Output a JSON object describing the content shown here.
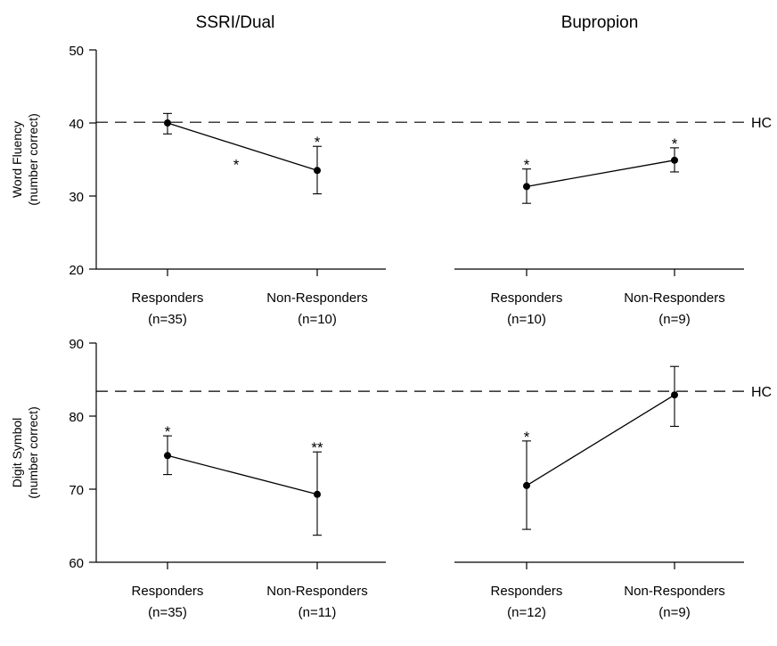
{
  "chart_data": {
    "type": "line",
    "column_titles": [
      "SSRI/Dual",
      "Bupropion"
    ],
    "hc_label": "HC",
    "panels": [
      {
        "ylabel_line1": "Word Fluency",
        "ylabel_line2": "(number correct)",
        "ylim": [
          20,
          50
        ],
        "yticks": [
          20,
          30,
          40,
          50
        ],
        "hc_value": 40.1,
        "groups": [
          {
            "title": "SSRI/Dual",
            "categories": [
              {
                "line1": "Responders",
                "line2": "(n=35)"
              },
              {
                "line1": "Non-Responders",
                "line2": "(n=10)"
              }
            ],
            "means": [
              40.0,
              33.5
            ],
            "error_lower": [
              38.5,
              30.3
            ],
            "error_upper": [
              41.3,
              36.8
            ],
            "point_stars": [
              "",
              "*"
            ],
            "line_star": "*"
          },
          {
            "title": "Bupropion",
            "categories": [
              {
                "line1": "Responders",
                "line2": "(n=10)"
              },
              {
                "line1": "Non-Responders",
                "line2": "(n=9)"
              }
            ],
            "means": [
              31.3,
              34.9
            ],
            "error_lower": [
              29.0,
              33.3
            ],
            "error_upper": [
              33.7,
              36.6
            ],
            "point_stars": [
              "*",
              "*"
            ],
            "line_star": ""
          }
        ]
      },
      {
        "ylabel_line1": "Digit Symbol",
        "ylabel_line2": "(number correct)",
        "ylim": [
          60,
          90
        ],
        "yticks": [
          60,
          70,
          80,
          90
        ],
        "hc_value": 83.4,
        "groups": [
          {
            "title": "SSRI/Dual",
            "categories": [
              {
                "line1": "Responders",
                "line2": "(n=35)"
              },
              {
                "line1": "Non-Responders",
                "line2": "(n=11)"
              }
            ],
            "means": [
              74.6,
              69.3
            ],
            "error_lower": [
              72.0,
              63.7
            ],
            "error_upper": [
              77.3,
              75.1
            ],
            "point_stars": [
              "*",
              "**"
            ],
            "line_star": ""
          },
          {
            "title": "Bupropion",
            "categories": [
              {
                "line1": "Responders",
                "line2": "(n=12)"
              },
              {
                "line1": "Non-Responders",
                "line2": "(n=9)"
              }
            ],
            "means": [
              70.5,
              82.9
            ],
            "error_lower": [
              64.5,
              78.6
            ],
            "error_upper": [
              76.6,
              86.8
            ],
            "point_stars": [
              "*",
              ""
            ],
            "line_star": ""
          }
        ]
      }
    ]
  }
}
